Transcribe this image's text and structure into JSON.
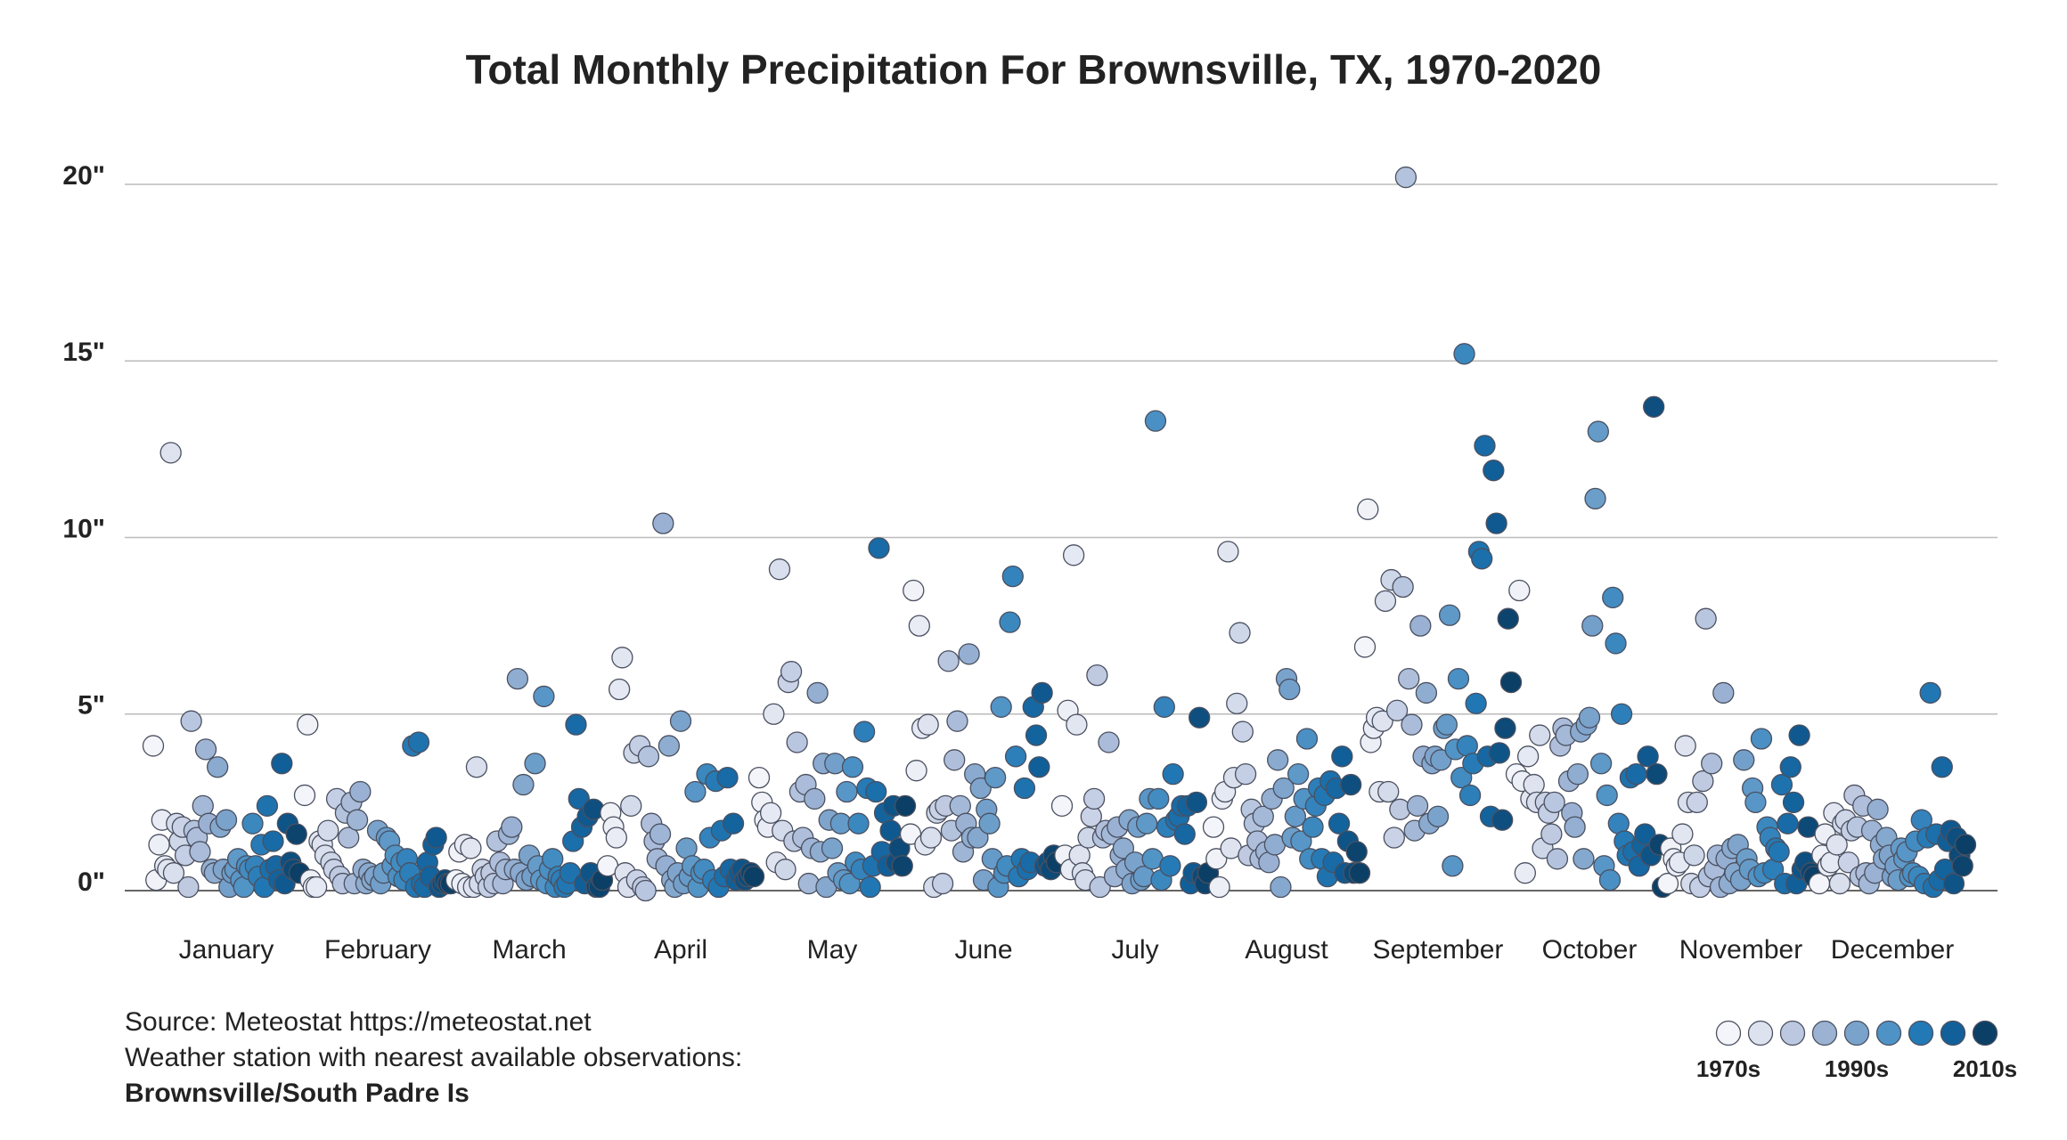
{
  "chart_data": {
    "type": "scatter",
    "title": "Total Monthly Precipitation For Brownsville, TX, 1970-2020",
    "x": [
      1970,
      1971,
      1972,
      1973,
      1974,
      1975,
      1976,
      1977,
      1978,
      1979,
      1980,
      1981,
      1982,
      1983,
      1984,
      1985,
      1986,
      1987,
      1988,
      1989,
      1990,
      1991,
      1992,
      1993,
      1994,
      1995,
      1996,
      1997,
      1998,
      1999,
      2000,
      2001,
      2002,
      2003,
      2004,
      2005,
      2006,
      2007,
      2008,
      2009,
      2010,
      2011,
      2012,
      2013,
      2014,
      2015,
      2016,
      2017,
      2018,
      2019,
      2020
    ],
    "series": [
      {
        "name": "January",
        "values": [
          4.1,
          0.3,
          1.3,
          2.0,
          0.7,
          0.6,
          12.4,
          0.5,
          1.9,
          1.4,
          1.8,
          1.0,
          0.1,
          4.8,
          1.7,
          1.5,
          1.1,
          2.4,
          4.0,
          1.9,
          0.6,
          0.5,
          3.5,
          1.8,
          0.6,
          2.0,
          0.1,
          0.5,
          0.6,
          0.9,
          0.3,
          0.1,
          0.7,
          0.6,
          1.9,
          0.7,
          0.4,
          1.3,
          0.1,
          2.4,
          0.6,
          1.4,
          0.7,
          0.3,
          3.6,
          0.2,
          1.9,
          0.8,
          0.6,
          1.6,
          0.5
        ]
      },
      {
        "name": "February",
        "values": [
          2.7,
          4.7,
          0.3,
          0.1,
          0.1,
          1.4,
          1.3,
          1.0,
          1.7,
          0.8,
          0.6,
          2.6,
          0.4,
          0.2,
          2.2,
          1.5,
          2.5,
          0.2,
          2.0,
          2.8,
          0.6,
          0.2,
          0.5,
          0.3,
          0.4,
          1.7,
          0.2,
          0.5,
          1.5,
          1.4,
          0.7,
          1.0,
          0.4,
          0.8,
          0.3,
          0.9,
          0.5,
          4.1,
          0.1,
          4.2,
          0.2,
          0.1,
          0.8,
          0.4,
          1.3,
          1.5,
          0.1,
          0.2,
          0.3,
          0.2,
          0.2
        ]
      },
      {
        "name": "March",
        "values": [
          0.3,
          1.1,
          0.2,
          1.3,
          0.1,
          1.2,
          0.1,
          3.5,
          0.2,
          0.6,
          0.4,
          0.1,
          0.5,
          0.2,
          1.4,
          0.8,
          0.2,
          0.6,
          1.6,
          1.8,
          0.6,
          6.0,
          0.5,
          3.0,
          0.3,
          1.0,
          0.4,
          3.6,
          0.7,
          0.3,
          5.5,
          0.2,
          0.6,
          0.9,
          0.1,
          0.4,
          0.3,
          0.1,
          0.2,
          0.5,
          1.4,
          4.7,
          2.6,
          1.8,
          0.2,
          2.1,
          0.5,
          2.3,
          0.1,
          0.1,
          0.3
        ]
      },
      {
        "name": "April",
        "values": [
          0.7,
          2.2,
          1.8,
          1.5,
          5.7,
          6.6,
          0.5,
          0.1,
          2.4,
          3.9,
          0.3,
          4.1,
          0.1,
          0.0,
          3.8,
          1.9,
          1.4,
          0.9,
          1.6,
          10.4,
          0.7,
          4.1,
          0.3,
          0.1,
          0.5,
          4.8,
          0.2,
          1.2,
          0.4,
          0.7,
          2.8,
          0.1,
          0.5,
          0.6,
          3.3,
          1.5,
          0.3,
          3.1,
          0.1,
          1.7,
          0.4,
          3.2,
          0.6,
          1.9,
          0.3,
          0.5,
          0.6,
          0.3,
          0.4,
          0.5,
          0.4
        ]
      },
      {
        "name": "May",
        "values": [
          3.2,
          2.5,
          2.0,
          1.8,
          2.2,
          5.0,
          0.8,
          9.1,
          1.7,
          0.6,
          5.9,
          6.2,
          1.4,
          4.2,
          2.8,
          1.5,
          3.0,
          0.2,
          1.2,
          2.6,
          5.6,
          1.1,
          3.6,
          0.1,
          2.0,
          1.2,
          3.6,
          0.5,
          1.9,
          0.3,
          2.8,
          0.2,
          3.5,
          0.8,
          1.9,
          0.6,
          4.5,
          2.9,
          0.1,
          0.7,
          2.8,
          9.7,
          1.1,
          2.2,
          0.7,
          1.7,
          2.4,
          0.8,
          1.2,
          0.7,
          2.4
        ]
      },
      {
        "name": "June",
        "values": [
          1.6,
          8.5,
          3.4,
          7.5,
          4.6,
          1.3,
          4.7,
          1.5,
          0.1,
          2.2,
          2.3,
          0.2,
          2.4,
          6.5,
          1.7,
          3.7,
          4.8,
          2.4,
          1.1,
          1.9,
          6.7,
          1.5,
          3.3,
          1.5,
          2.9,
          0.3,
          2.3,
          1.9,
          0.9,
          3.2,
          0.1,
          5.2,
          0.5,
          0.7,
          7.6,
          8.9,
          3.8,
          0.4,
          0.9,
          2.9,
          0.6,
          0.8,
          5.2,
          4.4,
          3.5,
          5.6,
          0.7,
          0.8,
          0.6,
          1.0,
          0.8
        ]
      },
      {
        "name": "July",
        "values": [
          2.4,
          1.0,
          5.1,
          0.6,
          9.5,
          4.7,
          1.0,
          0.5,
          0.3,
          1.5,
          2.1,
          2.6,
          6.1,
          0.1,
          1.5,
          1.7,
          4.2,
          1.6,
          0.4,
          1.8,
          1.0,
          1.2,
          0.6,
          2.0,
          0.2,
          0.8,
          1.8,
          0.3,
          0.4,
          1.9,
          2.6,
          0.9,
          13.3,
          2.6,
          0.3,
          5.2,
          1.8,
          0.7,
          3.3,
          2.0,
          2.1,
          2.4,
          1.6,
          2.4,
          0.2,
          0.5,
          2.5,
          4.9,
          0.4,
          0.2,
          0.5
        ]
      },
      {
        "name": "August",
        "values": [
          1.8,
          0.9,
          0.1,
          2.6,
          2.8,
          9.6,
          1.2,
          3.2,
          5.3,
          7.3,
          4.5,
          3.3,
          1.0,
          2.3,
          1.9,
          1.4,
          0.9,
          2.1,
          1.1,
          0.8,
          2.6,
          1.3,
          3.7,
          0.1,
          2.9,
          6.0,
          5.7,
          1.5,
          2.1,
          3.3,
          1.4,
          2.6,
          4.3,
          0.9,
          1.8,
          2.4,
          2.9,
          0.9,
          2.7,
          0.4,
          3.1,
          0.8,
          2.9,
          1.9,
          3.8,
          0.5,
          1.4,
          3.0,
          0.5,
          1.1,
          0.5
        ]
      },
      {
        "name": "September",
        "values": [
          6.9,
          10.8,
          4.2,
          4.6,
          4.9,
          2.8,
          4.8,
          8.2,
          2.8,
          8.8,
          1.5,
          5.1,
          2.3,
          8.6,
          20.2,
          6.0,
          4.7,
          1.7,
          2.4,
          7.5,
          3.8,
          5.6,
          1.9,
          3.6,
          3.8,
          2.1,
          3.7,
          4.6,
          4.7,
          7.8,
          0.7,
          4.0,
          6.0,
          3.2,
          15.2,
          4.1,
          2.7,
          3.6,
          5.3,
          9.6,
          9.4,
          12.6,
          3.8,
          2.1,
          11.9,
          10.4,
          3.9,
          2.0,
          4.6,
          7.7,
          5.9
        ]
      },
      {
        "name": "October",
        "values": [
          3.3,
          8.5,
          3.1,
          0.5,
          3.8,
          2.6,
          3.0,
          2.5,
          4.4,
          1.2,
          2.5,
          2.2,
          1.6,
          2.5,
          0.9,
          4.1,
          4.6,
          4.4,
          3.1,
          2.2,
          1.8,
          3.3,
          4.5,
          0.9,
          4.7,
          4.9,
          7.5,
          11.1,
          13.0,
          3.6,
          0.7,
          2.7,
          0.3,
          8.3,
          7.0,
          1.9,
          5.0,
          1.4,
          1.0,
          3.2,
          1.1,
          3.3,
          0.7,
          1.3,
          1.6,
          3.8,
          1.0,
          13.7,
          3.3,
          1.3,
          0.1
        ]
      },
      {
        "name": "November",
        "values": [
          0.2,
          1.2,
          0.9,
          0.7,
          0.8,
          1.6,
          4.1,
          2.5,
          0.2,
          1.0,
          2.5,
          0.1,
          3.1,
          7.7,
          0.4,
          3.6,
          0.6,
          1.0,
          0.1,
          5.6,
          0.9,
          0.2,
          1.2,
          0.5,
          1.3,
          0.3,
          3.7,
          0.9,
          0.6,
          2.9,
          2.5,
          0.4,
          4.3,
          0.5,
          1.8,
          1.5,
          0.6,
          1.2,
          1.1,
          3.0,
          0.2,
          1.9,
          3.5,
          2.5,
          0.2,
          4.4,
          0.6,
          0.8,
          1.8,
          0.5,
          0.4
        ]
      },
      {
        "name": "December",
        "values": [
          0.2,
          1.0,
          1.6,
          0.7,
          0.8,
          2.2,
          1.3,
          0.2,
          1.9,
          2.0,
          0.8,
          1.7,
          2.7,
          1.8,
          0.4,
          2.4,
          0.5,
          0.2,
          1.7,
          0.5,
          2.3,
          1.3,
          0.9,
          1.5,
          1.0,
          0.4,
          0.7,
          0.3,
          1.2,
          0.9,
          1.1,
          0.4,
          0.5,
          1.4,
          0.4,
          2.0,
          0.2,
          1.5,
          5.6,
          0.1,
          1.6,
          0.3,
          3.5,
          0.6,
          1.4,
          1.7,
          0.2,
          1.5,
          1.0,
          0.7,
          1.3
        ]
      }
    ],
    "ylim": [
      0,
      20
    ],
    "yticks": [
      {
        "value": 0,
        "label": "0\""
      },
      {
        "value": 5,
        "label": "5\""
      },
      {
        "value": 10,
        "label": "10\""
      },
      {
        "value": 15,
        "label": "15\""
      },
      {
        "value": 20,
        "label": "20\""
      }
    ],
    "grid": true,
    "legend": {
      "colors": [
        "#f4f5fa",
        "#dde2ef",
        "#bcc8e0",
        "#9bb2d3",
        "#7aa3cc",
        "#4f93c6",
        "#2279b5",
        "#11609a",
        "#0b3f66"
      ],
      "labels": [
        "1970s",
        null,
        null,
        null,
        "1990s",
        null,
        null,
        null,
        "2010s"
      ]
    },
    "notes": [
      "Source: Meteostat https://meteostat.net",
      "Weather station with nearest available observations:",
      "Brownsville/South Padre Is"
    ]
  }
}
